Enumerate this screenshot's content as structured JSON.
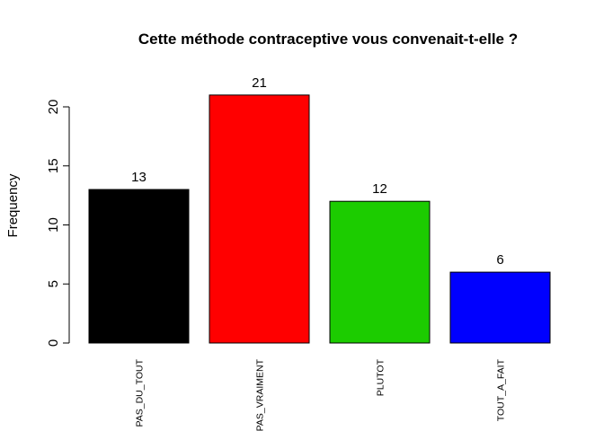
{
  "chart_data": {
    "type": "bar",
    "title": "Cette méthode contraceptive vous convenait-t-elle ?",
    "xlabel": "",
    "ylabel": "Frequency",
    "categories": [
      "PAS_DU_TOUT",
      "PAS_VRAIMENT",
      "PLUTOT",
      "TOUT_A_FAIT"
    ],
    "values": [
      13,
      21,
      12,
      6
    ],
    "value_labels": [
      "13",
      "21",
      "12",
      "6"
    ],
    "colors": [
      "#000000",
      "#ff0000",
      "#1ccc00",
      "#0000ff"
    ],
    "ylim": [
      0,
      21
    ],
    "yticks": [
      0,
      5,
      10,
      15,
      20
    ],
    "ytick_labels": [
      "0",
      "5",
      "10",
      "15",
      "20"
    ],
    "grid": false,
    "legend": false
  }
}
